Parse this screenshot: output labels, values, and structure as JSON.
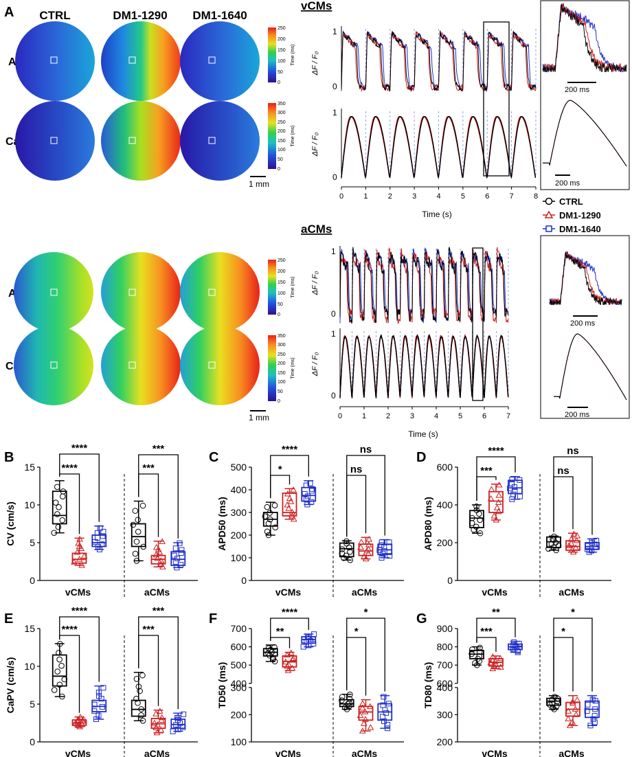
{
  "figure": {
    "panel_labels": {
      "A": "A",
      "B": "B",
      "C": "C",
      "D": "D",
      "E": "E",
      "F": "F",
      "G": "G"
    },
    "groups": [
      "CTRL",
      "DM1-1290",
      "DM1-1640"
    ],
    "row_labels": [
      "AP",
      "CaT"
    ],
    "scale_bar": "1 mm",
    "colorbar_title": "Time (ms)",
    "colorbar_ap_ticks": [
      "250",
      "200",
      "150",
      "100",
      "50",
      "0"
    ],
    "colorbar_cat_ticks": [
      "350",
      "300",
      "250",
      "200",
      "150",
      "100",
      "50",
      "0"
    ],
    "vcm_title": "vCMs",
    "acm_title": "aCMs",
    "trace_ylabel": "ΔF / F₀",
    "trace_yticks": [
      "1",
      "0"
    ],
    "time_label": "Time (s)",
    "vcm_time_ticks": [
      "0",
      "1",
      "2",
      "3",
      "4",
      "5",
      "6",
      "7",
      "8"
    ],
    "acm_time_ticks": [
      "0",
      "1",
      "2",
      "3",
      "4",
      "5",
      "6",
      "7"
    ],
    "inset_scale": "200 ms",
    "legend": [
      "CTRL",
      "DM1-1290",
      "DM1-1640"
    ],
    "colors": {
      "CTRL": "#000000",
      "DM1-1290": "#cc1f1f",
      "DM1-1640": "#1f2fc8"
    },
    "box_x_categories": [
      "vCMs",
      "aCMs"
    ]
  },
  "chart_data": [
    {
      "type": "box",
      "panel": "B",
      "ylabel": "CV (cm/s)",
      "ylim": [
        0,
        15
      ],
      "yticks": [
        "0",
        "5",
        "10",
        "15"
      ],
      "categories": [
        "vCMs",
        "aCMs"
      ],
      "series": [
        {
          "name": "CTRL",
          "stats": [
            [
              6.3,
              7.5,
              8.6,
              11.8,
              13.2
            ],
            [
              2.6,
              4.5,
              5.8,
              7.5,
              10.5
            ]
          ]
        },
        {
          "name": "DM1-1290",
          "stats": [
            [
              2.0,
              2.3,
              2.8,
              3.6,
              5.6
            ],
            [
              1.8,
              2.2,
              2.8,
              3.3,
              5.2
            ]
          ]
        },
        {
          "name": "DM1-1640",
          "stats": [
            [
              4.1,
              4.5,
              5.0,
              6.0,
              7.2
            ],
            [
              1.7,
              2.0,
              2.8,
              3.8,
              5.0
            ]
          ]
        }
      ],
      "significance": [
        {
          "label": "****"
        },
        {
          "label": "****"
        },
        {
          "label": "***"
        },
        {
          "label": "***"
        }
      ]
    },
    {
      "type": "box",
      "panel": "C",
      "ylabel": "APD50 (ms)",
      "ylim": [
        0,
        500
      ],
      "yticks": [
        "0",
        "100",
        "200",
        "300",
        "400",
        "500"
      ],
      "categories": [
        "vCMs",
        "aCMs"
      ],
      "series": [
        {
          "name": "CTRL",
          "stats": [
            [
              200,
              240,
              270,
              300,
              345
            ],
            [
              90,
              105,
              140,
              165,
              175
            ]
          ]
        },
        {
          "name": "DM1-1290",
          "stats": [
            [
              270,
              285,
              300,
              385,
              405
            ],
            [
              95,
              110,
              130,
              160,
              190
            ]
          ]
        },
        {
          "name": "DM1-1640",
          "stats": [
            [
              335,
              350,
              375,
              410,
              440
            ],
            [
              100,
              115,
              135,
              160,
              180
            ]
          ]
        }
      ],
      "significance": [
        {
          "label": "*"
        },
        {
          "label": "****"
        },
        {
          "label": "ns"
        },
        {
          "label": "ns"
        }
      ]
    },
    {
      "type": "box",
      "panel": "D",
      "ylabel": "APD80 (ms)",
      "ylim": [
        0,
        600
      ],
      "yticks": [
        "0",
        "200",
        "400",
        "600"
      ],
      "categories": [
        "vCMs",
        "aCMs"
      ],
      "series": [
        {
          "name": "CTRL",
          "stats": [
            [
              250,
              280,
              330,
              370,
              400
            ],
            [
              160,
              175,
              205,
              230,
              235
            ]
          ]
        },
        {
          "name": "DM1-1290",
          "stats": [
            [
              320,
              360,
              420,
              470,
              510
            ],
            [
              150,
              160,
              180,
              210,
              250
            ]
          ]
        },
        {
          "name": "DM1-1640",
          "stats": [
            [
              430,
              460,
              490,
              530,
              550
            ],
            [
              150,
              165,
              180,
              200,
              220
            ]
          ]
        }
      ],
      "significance": [
        {
          "label": "***"
        },
        {
          "label": "****"
        },
        {
          "label": "ns"
        },
        {
          "label": "ns"
        }
      ]
    },
    {
      "type": "box",
      "panel": "E",
      "ylabel": "CaPV (cm/s)",
      "ylim": [
        0,
        15
      ],
      "yticks": [
        "0",
        "5",
        "10",
        "15"
      ],
      "categories": [
        "vCMs",
        "aCMs"
      ],
      "series": [
        {
          "name": "CTRL",
          "stats": [
            [
              6.0,
              7.4,
              8.7,
              11.5,
              13.0
            ],
            [
              2.8,
              3.4,
              4.3,
              5.5,
              9.2
            ]
          ]
        },
        {
          "name": "DM1-1290",
          "stats": [
            [
              2.0,
              2.2,
              2.5,
              2.9,
              3.3
            ],
            [
              1.2,
              1.8,
              2.4,
              3.1,
              4.2
            ]
          ]
        },
        {
          "name": "DM1-1640",
          "stats": [
            [
              3.0,
              4.0,
              4.7,
              5.5,
              7.4
            ],
            [
              1.4,
              1.8,
              2.3,
              3.0,
              3.8
            ]
          ]
        }
      ],
      "significance": [
        {
          "label": "****"
        },
        {
          "label": "****"
        },
        {
          "label": "***"
        },
        {
          "label": "***"
        }
      ]
    },
    {
      "type": "box",
      "panel": "F",
      "ylabel": "TD50 (ms)",
      "broken_axis": true,
      "upper_range": [
        400,
        700
      ],
      "upper_ticks": [
        "400",
        "500",
        "600",
        "700"
      ],
      "lower_range": [
        100,
        300
      ],
      "lower_ticks": [
        "100",
        "200",
        "300"
      ],
      "categories": [
        "vCMs",
        "aCMs"
      ],
      "series": [
        {
          "name": "CTRL",
          "stats": [
            [
              520,
              550,
              570,
              590,
              610
            ],
            [
              220,
              230,
              240,
              255,
              275
            ]
          ]
        },
        {
          "name": "DM1-1290",
          "stats": [
            [
              470,
              490,
              520,
              550,
              570
            ],
            [
              140,
              180,
              210,
              230,
              255
            ]
          ]
        },
        {
          "name": "DM1-1640",
          "stats": [
            [
              600,
              620,
              640,
              655,
              670
            ],
            [
              150,
              180,
              210,
              240,
              270
            ]
          ]
        }
      ],
      "significance": [
        {
          "label": "**"
        },
        {
          "label": "****"
        },
        {
          "label": "*"
        },
        {
          "label": "*"
        }
      ]
    },
    {
      "type": "box",
      "panel": "G",
      "ylabel": "TD80 (ms)",
      "broken_axis": true,
      "upper_range": [
        600,
        900
      ],
      "upper_ticks": [
        "600",
        "700",
        "800",
        "900"
      ],
      "lower_range": [
        200,
        400
      ],
      "lower_ticks": [
        "200",
        "300",
        "400"
      ],
      "categories": [
        "vCMs",
        "aCMs"
      ],
      "series": [
        {
          "name": "CTRL",
          "stats": [
            [
              700,
              735,
              760,
              780,
              800
            ],
            [
              320,
              335,
              350,
              360,
              370
            ]
          ]
        },
        {
          "name": "DM1-1290",
          "stats": [
            [
              680,
              695,
              715,
              735,
              750
            ],
            [
              260,
              295,
              320,
              345,
              370
            ]
          ]
        },
        {
          "name": "DM1-1640",
          "stats": [
            [
              770,
              785,
              800,
              815,
              830
            ],
            [
              260,
              290,
              320,
              350,
              370
            ]
          ]
        }
      ],
      "significance": [
        {
          "label": "***"
        },
        {
          "label": "**"
        },
        {
          "label": "*"
        },
        {
          "label": "*"
        }
      ]
    }
  ]
}
